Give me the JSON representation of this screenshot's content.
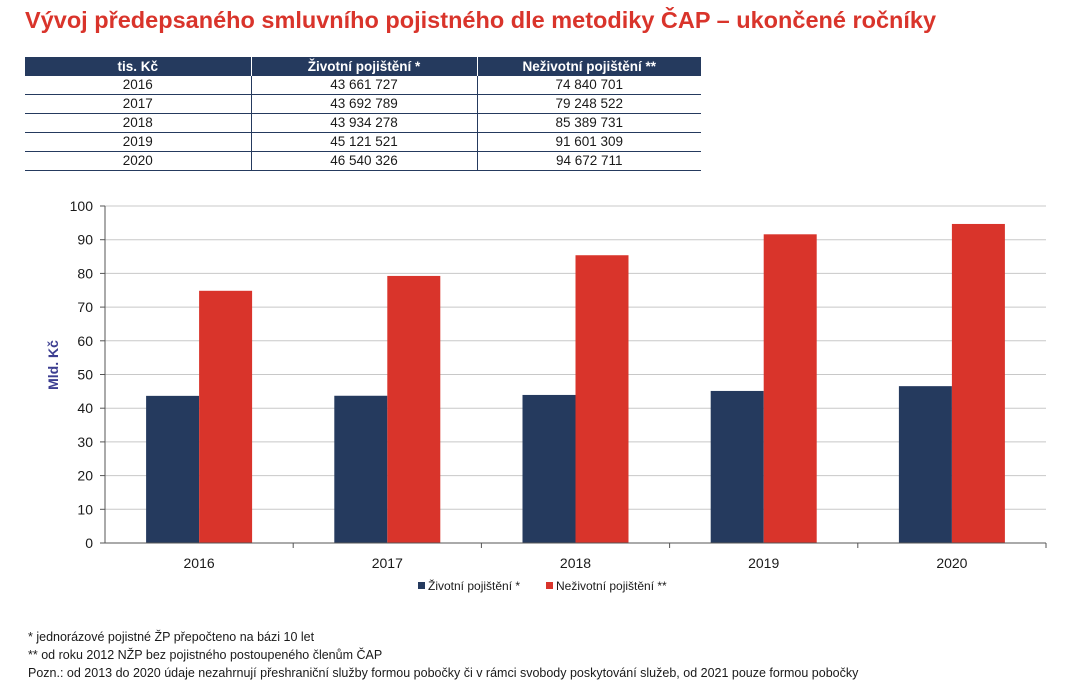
{
  "title": "Vývoj předepsaného smluvního pojistného dle metodiky ČAP – ukončené ročníky",
  "table": {
    "headers": [
      "tis. Kč",
      "Životní pojištění *",
      "Neživotní pojištění **"
    ],
    "rows": [
      [
        "2016",
        "43 661 727",
        "74 840 701"
      ],
      [
        "2017",
        "43 692 789",
        "79 248 522"
      ],
      [
        "2018",
        "43 934 278",
        "85 389 731"
      ],
      [
        "2019",
        "45 121 521",
        "91 601 309"
      ],
      [
        "2020",
        "46 540 326",
        "94 672 711"
      ]
    ]
  },
  "chart_data": {
    "type": "bar",
    "categories": [
      "2016",
      "2017",
      "2018",
      "2019",
      "2020"
    ],
    "series": [
      {
        "name": "Životní pojištění *",
        "values": [
          43.661727,
          43.692789,
          43.934278,
          45.121521,
          46.540326
        ],
        "color": "#253a5e"
      },
      {
        "name": "Neživotní pojištění **",
        "values": [
          74.840701,
          79.248522,
          85.389731,
          91.601309,
          94.672711
        ],
        "color": "#d9342b"
      }
    ],
    "ylabel": "Mld. Kč",
    "ylim": [
      0,
      100
    ],
    "yticks": [
      "0",
      "10",
      "20",
      "30",
      "40",
      "50",
      "60",
      "70",
      "80",
      "90",
      "100"
    ],
    "grid": true,
    "legend": "bottom"
  },
  "notes": [
    "* jednorázové pojistné ŽP přepočteno na bázi 10 let",
    "** od roku 2012 NŽP bez pojistného postoupeného členům ČAP",
    "Pozn.: od 2013 do 2020 údaje nezahrnují přeshraniční služby formou pobočky či v rámci svobody poskytování služeb, od 2021 pouze formou pobočky"
  ]
}
